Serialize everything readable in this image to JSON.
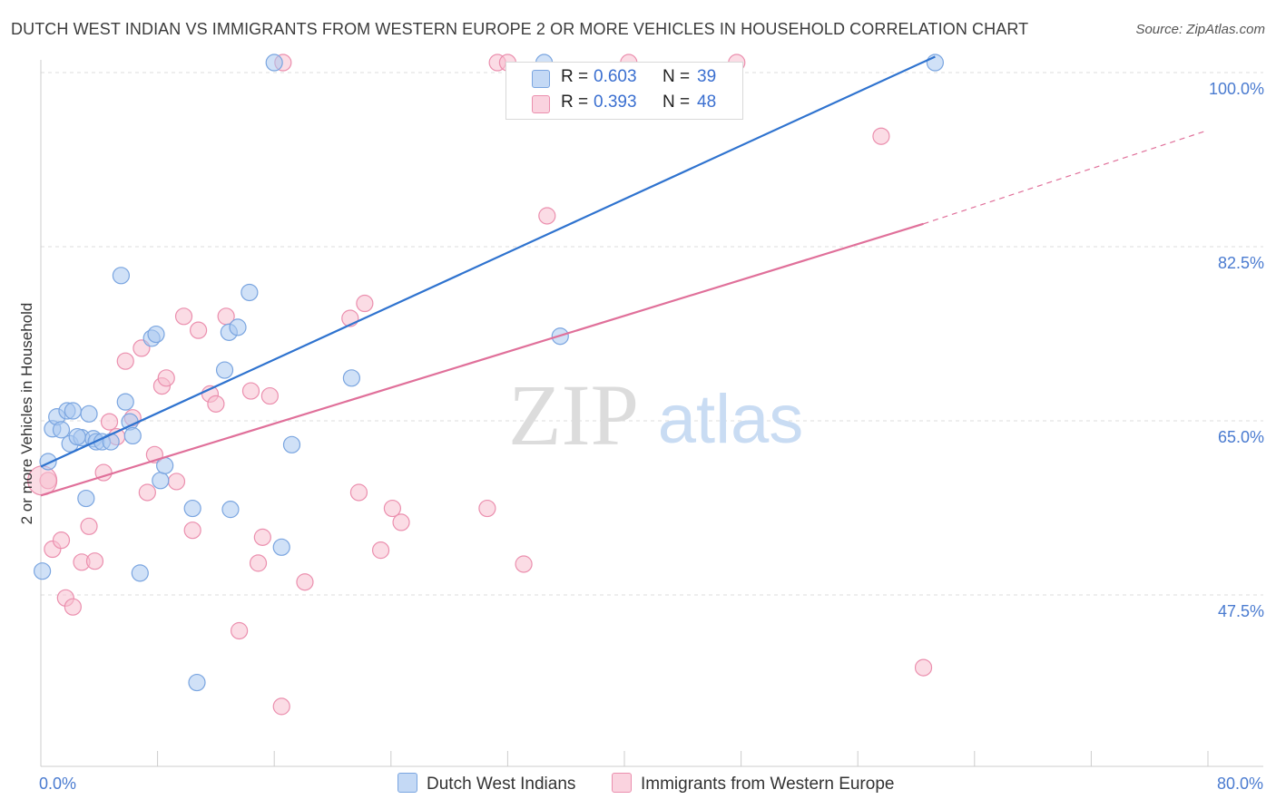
{
  "title": "DUTCH WEST INDIAN VS IMMIGRANTS FROM WESTERN EUROPE 2 OR MORE VEHICLES IN HOUSEHOLD CORRELATION CHART",
  "source": "Source: ZipAtlas.com",
  "watermark": {
    "zip": "ZIP",
    "atlas": "atlas"
  },
  "legend": {
    "rows": [
      {
        "r_label": "R =",
        "r_value": "0.603",
        "n_label": "N =",
        "n_value": "39",
        "color": "#a9c8f0",
        "border": "#7aa5e0"
      },
      {
        "r_label": "R =",
        "r_value": "0.393",
        "n_label": "N =",
        "n_value": "48",
        "color": "#f7bfd0",
        "border": "#eb8fae"
      }
    ]
  },
  "bottom_legend": {
    "series1": "Dutch West Indians",
    "series2": "Immigrants from Western Europe"
  },
  "chart_data": {
    "type": "scatter",
    "title": "DUTCH WEST INDIAN VS IMMIGRANTS FROM WESTERN EUROPE 2 OR MORE VEHICLES IN HOUSEHOLD CORRELATION CHART",
    "xlabel": "",
    "ylabel": "2 or more Vehicles in Household",
    "xlim": [
      0,
      80
    ],
    "ylim": [
      32.5,
      101
    ],
    "x_tick_labels": [
      "0.0%",
      "80.0%"
    ],
    "y_tick_values": [
      47.5,
      65.0,
      82.5,
      100.0
    ],
    "y_tick_labels": [
      "47.5%",
      "65.0%",
      "82.5%",
      "100.0%"
    ],
    "grid": true,
    "legend_position": "top-center",
    "series": [
      {
        "name": "Dutch West Indians",
        "color": "#7aa5e0",
        "fill": "#a9c8f0",
        "line_color": "#2f73cf",
        "trend": {
          "x": [
            0,
            61.3
          ],
          "y": [
            60.4,
            101.6
          ]
        },
        "points": [
          {
            "x": 0.5,
            "y": 60.9
          },
          {
            "x": 0.8,
            "y": 64.2
          },
          {
            "x": 1.1,
            "y": 65.4
          },
          {
            "x": 1.4,
            "y": 64.1
          },
          {
            "x": 1.8,
            "y": 66.0
          },
          {
            "x": 2.0,
            "y": 62.7
          },
          {
            "x": 2.2,
            "y": 66.0
          },
          {
            "x": 2.8,
            "y": 63.3
          },
          {
            "x": 3.1,
            "y": 57.2
          },
          {
            "x": 3.3,
            "y": 65.7
          },
          {
            "x": 3.6,
            "y": 63.2
          },
          {
            "x": 3.8,
            "y": 62.9
          },
          {
            "x": 4.2,
            "y": 62.9
          },
          {
            "x": 4.8,
            "y": 62.9
          },
          {
            "x": 5.5,
            "y": 79.6
          },
          {
            "x": 5.8,
            "y": 66.9
          },
          {
            "x": 6.1,
            "y": 64.9
          },
          {
            "x": 6.3,
            "y": 63.5
          },
          {
            "x": 6.8,
            "y": 49.7
          },
          {
            "x": 7.6,
            "y": 73.3
          },
          {
            "x": 7.9,
            "y": 73.7
          },
          {
            "x": 8.2,
            "y": 59.0
          },
          {
            "x": 8.5,
            "y": 60.5
          },
          {
            "x": 10.4,
            "y": 56.2
          },
          {
            "x": 10.7,
            "y": 38.7
          },
          {
            "x": 12.6,
            "y": 70.1
          },
          {
            "x": 12.9,
            "y": 73.9
          },
          {
            "x": 13.0,
            "y": 56.1
          },
          {
            "x": 13.5,
            "y": 74.4
          },
          {
            "x": 14.3,
            "y": 77.9
          },
          {
            "x": 16.0,
            "y": 101.0
          },
          {
            "x": 16.5,
            "y": 52.3
          },
          {
            "x": 17.2,
            "y": 62.6
          },
          {
            "x": 21.3,
            "y": 69.3
          },
          {
            "x": 34.5,
            "y": 101.0
          },
          {
            "x": 35.6,
            "y": 73.5
          },
          {
            "x": 61.3,
            "y": 101.0
          },
          {
            "x": 0.1,
            "y": 49.9
          },
          {
            "x": 2.5,
            "y": 63.4
          }
        ]
      },
      {
        "name": "Immigrants from Western Europe",
        "color": "#eb8fae",
        "fill": "#f7bfd0",
        "line_color": "#e0709a",
        "trend": {
          "x": [
            0,
            60.5
          ],
          "y": [
            57.5,
            84.8
          ]
        },
        "trend_extension": {
          "x": [
            60.5,
            80
          ],
          "y": [
            84.8,
            94.2
          ]
        },
        "points": [
          {
            "x": 0.5,
            "y": 59.0
          },
          {
            "x": 0.8,
            "y": 52.1
          },
          {
            "x": 1.4,
            "y": 53.0
          },
          {
            "x": 1.7,
            "y": 47.2
          },
          {
            "x": 2.2,
            "y": 46.3
          },
          {
            "x": 2.8,
            "y": 50.8
          },
          {
            "x": 3.3,
            "y": 54.4
          },
          {
            "x": 3.7,
            "y": 50.9
          },
          {
            "x": 4.3,
            "y": 59.8
          },
          {
            "x": 4.7,
            "y": 64.9
          },
          {
            "x": 5.2,
            "y": 63.4
          },
          {
            "x": 5.8,
            "y": 71.0
          },
          {
            "x": 6.3,
            "y": 65.3
          },
          {
            "x": 6.9,
            "y": 72.3
          },
          {
            "x": 7.3,
            "y": 57.8
          },
          {
            "x": 7.8,
            "y": 61.6
          },
          {
            "x": 8.3,
            "y": 68.5
          },
          {
            "x": 8.6,
            "y": 69.3
          },
          {
            "x": 9.3,
            "y": 58.9
          },
          {
            "x": 9.8,
            "y": 75.5
          },
          {
            "x": 10.4,
            "y": 54.0
          },
          {
            "x": 10.8,
            "y": 74.1
          },
          {
            "x": 11.6,
            "y": 67.7
          },
          {
            "x": 12.0,
            "y": 66.7
          },
          {
            "x": 12.7,
            "y": 75.5
          },
          {
            "x": 13.6,
            "y": 43.9
          },
          {
            "x": 14.4,
            "y": 68.0
          },
          {
            "x": 14.9,
            "y": 50.7
          },
          {
            "x": 15.2,
            "y": 53.3
          },
          {
            "x": 15.7,
            "y": 67.5
          },
          {
            "x": 16.5,
            "y": 36.3
          },
          {
            "x": 16.6,
            "y": 101.0
          },
          {
            "x": 18.1,
            "y": 48.8
          },
          {
            "x": 21.2,
            "y": 75.3
          },
          {
            "x": 21.8,
            "y": 57.8
          },
          {
            "x": 22.2,
            "y": 76.8
          },
          {
            "x": 23.3,
            "y": 52.0
          },
          {
            "x": 24.1,
            "y": 56.2
          },
          {
            "x": 24.7,
            "y": 54.8
          },
          {
            "x": 30.6,
            "y": 56.2
          },
          {
            "x": 31.3,
            "y": 101.0
          },
          {
            "x": 32.0,
            "y": 101.0
          },
          {
            "x": 33.1,
            "y": 50.6
          },
          {
            "x": 34.7,
            "y": 85.6
          },
          {
            "x": 40.3,
            "y": 101.0
          },
          {
            "x": 47.7,
            "y": 101.0
          },
          {
            "x": 57.6,
            "y": 93.6
          },
          {
            "x": 60.5,
            "y": 40.2
          }
        ]
      }
    ]
  }
}
